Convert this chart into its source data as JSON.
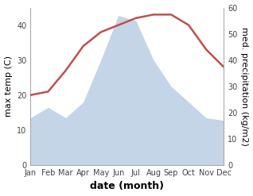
{
  "months": [
    "Jan",
    "Feb",
    "Mar",
    "Apr",
    "May",
    "Jun",
    "Jul",
    "Aug",
    "Sep",
    "Oct",
    "Nov",
    "Dec"
  ],
  "month_indices": [
    1,
    2,
    3,
    4,
    5,
    6,
    7,
    8,
    9,
    10,
    11,
    12
  ],
  "precipitation_kg": [
    18,
    22,
    18,
    24,
    40,
    57,
    55,
    40,
    30,
    24,
    18,
    17
  ],
  "temperature": [
    20,
    21,
    27,
    34,
    38,
    40,
    42,
    43,
    43,
    40,
    33,
    28
  ],
  "temp_color": "#c0504d",
  "precip_fill_color": "#c5d5e8",
  "xlabel": "date (month)",
  "ylabel_left": "max temp (C)",
  "ylabel_right": "med. precipitation (kg/m2)",
  "ylim_left": [
    0,
    45
  ],
  "ylim_right": [
    0,
    60
  ],
  "yticks_left": [
    0,
    10,
    20,
    30,
    40
  ],
  "yticks_right": [
    0,
    10,
    20,
    30,
    40,
    50,
    60
  ],
  "bg_color": "#ffffff",
  "line_width": 1.8,
  "font_size_ticks": 7,
  "font_size_label": 8,
  "font_size_xlabel": 9
}
